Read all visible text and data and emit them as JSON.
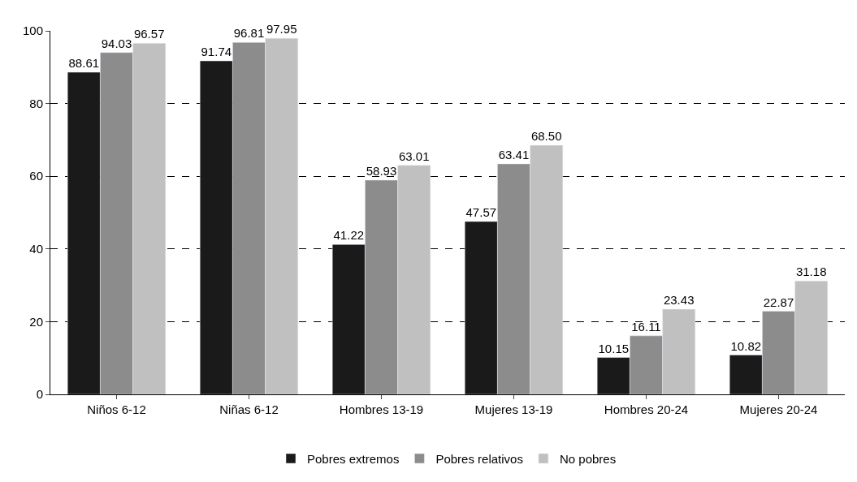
{
  "chart_data": {
    "type": "bar",
    "categories": [
      "Niños 6-12",
      "Niñas 6-12",
      "Hombres 13-19",
      "Mujeres 13-19",
      "Hombres 20-24",
      "Mujeres 20-24"
    ],
    "series": [
      {
        "name": "Pobres extremos",
        "color": "#1a1a1a",
        "values": [
          88.61,
          91.74,
          41.22,
          47.57,
          10.15,
          10.82
        ]
      },
      {
        "name": "Pobres relativos",
        "color": "#8c8c8c",
        "values": [
          94.03,
          96.81,
          58.93,
          63.41,
          16.11,
          22.87
        ]
      },
      {
        "name": "No pobres",
        "color": "#c0c0c0",
        "values": [
          96.57,
          97.95,
          63.01,
          68.5,
          23.43,
          31.18
        ]
      }
    ],
    "value_labels": [
      [
        "88.61",
        "91.74",
        "41.22",
        "47.57",
        "10.15",
        "10.82"
      ],
      [
        "94.03",
        "96.81",
        "58.93",
        "63.41",
        "16.11",
        "22.87"
      ],
      [
        "96.57",
        "97.95",
        "63.01",
        "68.50",
        "23.43",
        "31.18"
      ]
    ],
    "ylim": [
      0,
      100
    ],
    "yticks": [
      0,
      20,
      40,
      60,
      80,
      100
    ],
    "grid": "y",
    "legend": "bottom"
  }
}
